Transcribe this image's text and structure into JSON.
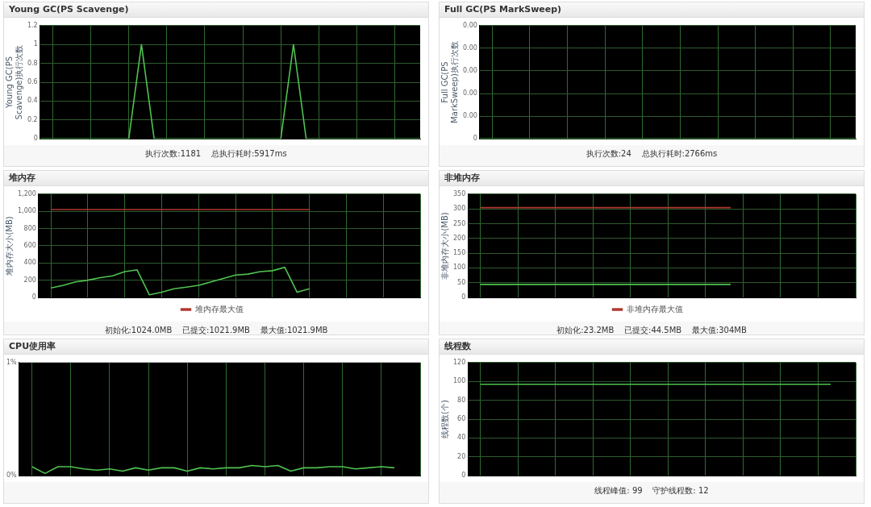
{
  "chart_data": [
    {
      "type": "line",
      "title": "Young GC(PS Scavenge)",
      "ylabel": "Young GC(PS Scavenge)执行次数",
      "categories": [
        null,
        null,
        null,
        null,
        null,
        null,
        null,
        null,
        null,
        null,
        null,
        null,
        null,
        null,
        null,
        null,
        null,
        null,
        null,
        null,
        null,
        null,
        null,
        null,
        null,
        null,
        null,
        null,
        null,
        null,
        null
      ],
      "series": [
        {
          "color": "#4fc24f",
          "values": [
            0,
            0,
            0,
            0,
            0,
            0,
            0,
            0,
            1,
            0,
            0,
            0,
            0,
            0,
            0,
            0,
            0,
            0,
            0,
            0,
            1,
            0,
            0,
            0,
            0,
            0,
            0,
            0,
            0,
            0,
            0
          ]
        }
      ],
      "ylim": [
        0,
        1.2
      ],
      "yticks": [
        0,
        0.2,
        0.4,
        0.6,
        0.8,
        1,
        1.2
      ],
      "grid": true,
      "tick_labels": "y",
      "annotations": [
        "执行次数:1181    总执行耗时:5917ms"
      ]
    },
    {
      "type": "line",
      "title": "Full GC(PS MarkSweep)",
      "ylabel": "Full GC(PS MarkSweep)执行次数",
      "categories": [
        null,
        null,
        null,
        null,
        null,
        null,
        null,
        null,
        null,
        null,
        null,
        null,
        null,
        null,
        null,
        null,
        null,
        null,
        null,
        null,
        null,
        null,
        null,
        null,
        null,
        null,
        null,
        null,
        null,
        null,
        null
      ],
      "series": [
        {
          "color": "#4fc24f",
          "values": [
            0,
            0,
            0,
            0,
            0,
            0,
            0,
            0,
            0,
            0,
            0,
            0,
            0,
            0,
            0,
            0,
            0,
            0,
            0,
            0,
            0,
            0,
            0,
            0,
            0,
            0,
            0,
            0,
            0,
            0,
            0
          ]
        }
      ],
      "ylim": [
        0,
        0.004
      ],
      "yticks": [
        0,
        {
          "value": 0.0008,
          "label": "0.00"
        },
        {
          "value": 0.0016,
          "label": "0.00"
        },
        {
          "value": 0.0024,
          "label": "0.00"
        },
        {
          "value": 0.0032,
          "label": "0.00"
        },
        {
          "value": 0.004,
          "label": "0.00"
        }
      ],
      "grid": true,
      "tick_labels": "y",
      "annotations": [
        "执行次数:24    总执行耗时:2766ms"
      ]
    },
    {
      "type": "line",
      "title": "堆内存",
      "ylabel": "堆内存大小(MB)",
      "categories": [
        null,
        null,
        null,
        null,
        null,
        null,
        null,
        null,
        null,
        null,
        null,
        null,
        null,
        null,
        null,
        null,
        null,
        null,
        null,
        null,
        null,
        null,
        null,
        null,
        null,
        null,
        null,
        null,
        null,
        null,
        null,
        null
      ],
      "series": [
        {
          "color": "#4fc24f",
          "values": [
            null,
            110,
            140,
            180,
            200,
            230,
            250,
            300,
            320,
            30,
            60,
            100,
            120,
            140,
            180,
            220,
            260,
            270,
            300,
            310,
            350,
            60,
            100,
            null,
            null,
            null,
            null,
            null,
            null,
            null,
            null,
            null
          ]
        },
        {
          "name": "堆内存最大值",
          "color": "#b03a32",
          "values": [
            null,
            1020,
            1020,
            1020,
            1020,
            1020,
            1020,
            1020,
            1020,
            1020,
            1020,
            1020,
            1020,
            1020,
            1020,
            1020,
            1020,
            1020,
            1020,
            1020,
            1020,
            1020,
            1020,
            null,
            null,
            null,
            null,
            null,
            null,
            null,
            null,
            null
          ]
        }
      ],
      "ylim": [
        0,
        1200
      ],
      "yticks": [
        0,
        200,
        400,
        600,
        800,
        {
          "value": 1000,
          "label": "1,000"
        },
        {
          "value": 1200,
          "label": "1,200"
        }
      ],
      "grid": true,
      "legend": "bottom",
      "tick_labels": "y",
      "annotations": [
        "初始化:1024.0MB    已提交:1021.9MB    最大值:1021.9MB"
      ]
    },
    {
      "type": "line",
      "title": "非堆内存",
      "ylabel": "非堆内存大小(MB)",
      "categories": [
        null,
        null,
        null,
        null,
        null,
        null,
        null,
        null,
        null,
        null,
        null,
        null,
        null,
        null,
        null,
        null,
        null,
        null,
        null,
        null,
        null,
        null,
        null,
        null,
        null,
        null,
        null,
        null,
        null,
        null,
        null,
        null
      ],
      "series": [
        {
          "color": "#4fc24f",
          "values": [
            null,
            44,
            44,
            44,
            44,
            44,
            44,
            44,
            44,
            44,
            44,
            44,
            44,
            44,
            44,
            44,
            44,
            44,
            44,
            44,
            44,
            44,
            null,
            null,
            null,
            null,
            null,
            null,
            null,
            null,
            null,
            null
          ]
        },
        {
          "name": "非堆内存最大值",
          "color": "#b03a32",
          "values": [
            null,
            304,
            304,
            304,
            304,
            304,
            304,
            304,
            304,
            304,
            304,
            304,
            304,
            304,
            304,
            304,
            304,
            304,
            304,
            304,
            304,
            304,
            null,
            null,
            null,
            null,
            null,
            null,
            null,
            null,
            null,
            null
          ]
        }
      ],
      "ylim": [
        0,
        350
      ],
      "yticks": [
        0,
        50,
        100,
        150,
        200,
        250,
        300,
        350
      ],
      "grid": true,
      "legend": "bottom",
      "tick_labels": "y",
      "annotations": [
        "初始化:23.2MB    已提交:44.5MB    最大值:304MB"
      ]
    },
    {
      "type": "line",
      "title": "CPU使用率",
      "categories": [
        null,
        null,
        null,
        null,
        null,
        null,
        null,
        null,
        null,
        null,
        null,
        null,
        null,
        null,
        null,
        null,
        null,
        null,
        null,
        null,
        null,
        null,
        null,
        null,
        null,
        null,
        null,
        null,
        null,
        null,
        null,
        null
      ],
      "series": [
        {
          "color": "#4fc24f",
          "values": [
            null,
            0.08,
            0.02,
            0.08,
            0.08,
            0.06,
            0.05,
            0.06,
            0.04,
            0.07,
            0.05,
            0.07,
            0.07,
            0.04,
            0.07,
            0.06,
            0.07,
            0.07,
            0.09,
            0.08,
            0.09,
            0.04,
            0.07,
            0.07,
            0.08,
            0.08,
            0.06,
            0.07,
            0.08,
            0.07,
            null,
            null
          ]
        }
      ],
      "ylim": [
        0,
        1
      ],
      "yticks": [
        {
          "value": 0,
          "label": "0%"
        },
        {
          "value": 1,
          "label": "1%"
        }
      ],
      "grid": "x",
      "tick_labels": "y"
    },
    {
      "type": "line",
      "title": "线程数",
      "ylabel": "线程数(个)",
      "categories": [
        null,
        null,
        null,
        null,
        null,
        null,
        null,
        null,
        null,
        null,
        null,
        null,
        null,
        null,
        null,
        null,
        null,
        null,
        null,
        null,
        null,
        null,
        null,
        null,
        null,
        null,
        null,
        null,
        null,
        null,
        null,
        null
      ],
      "series": [
        {
          "color": "#4fc24f",
          "values": [
            null,
            97,
            97,
            97,
            97,
            97,
            97,
            97,
            97,
            97,
            97,
            97,
            97,
            97,
            97,
            97,
            97,
            97,
            97,
            97,
            97,
            97,
            97,
            97,
            97,
            97,
            97,
            97,
            97,
            97,
            null,
            null
          ]
        }
      ],
      "ylim": [
        0,
        120
      ],
      "yticks": [
        0,
        20,
        40,
        60,
        80,
        100,
        120
      ],
      "grid": true,
      "tick_labels": "y",
      "annotations": [
        "线程峰值: 99    守护线程数: 12"
      ]
    }
  ]
}
